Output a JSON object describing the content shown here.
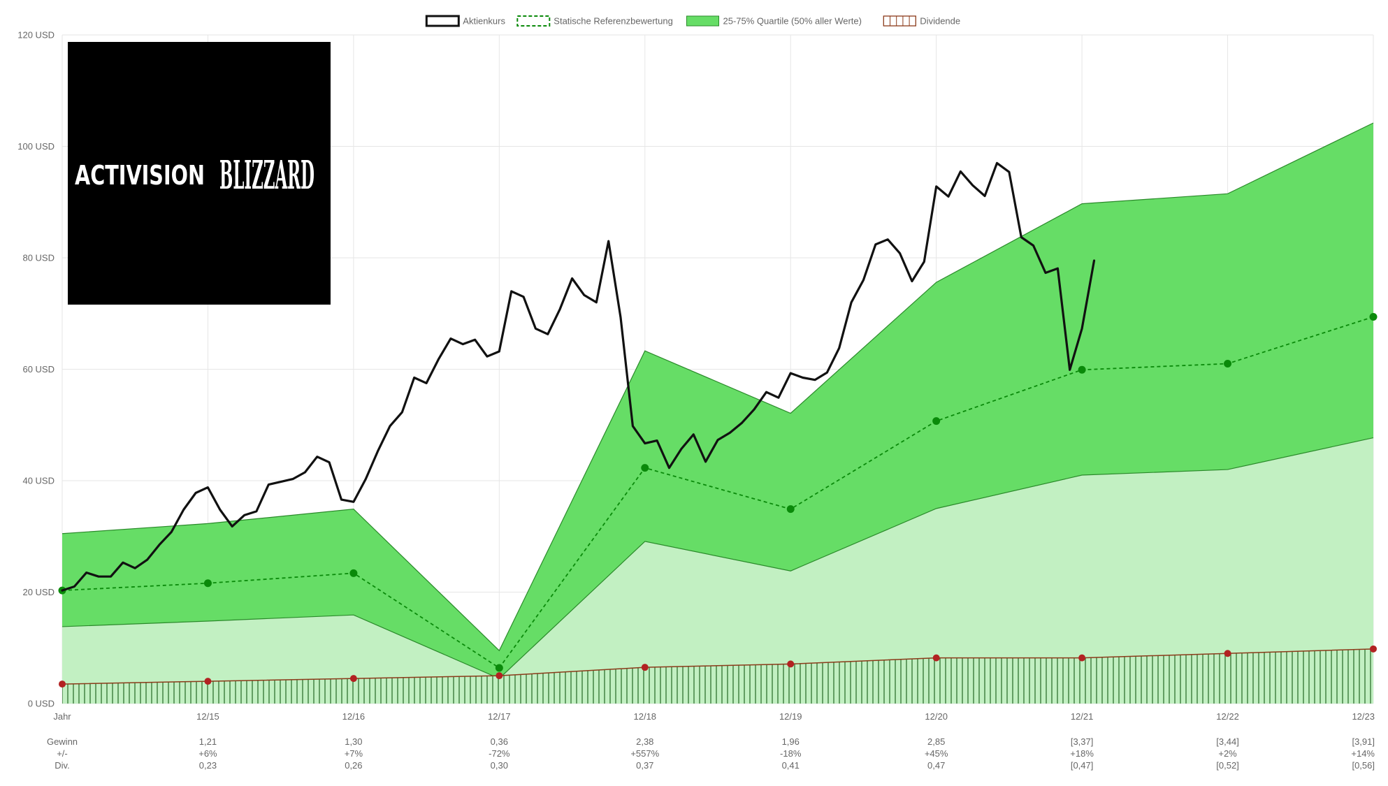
{
  "chart_data": {
    "type": "line",
    "y_axis": {
      "min": 0,
      "max": 120,
      "step": 20,
      "unit": "USD"
    },
    "x_axis": {
      "first_label": "Jahr",
      "categories": [
        "Jahr",
        "12/15",
        "12/16",
        "12/17",
        "12/18",
        "12/19",
        "12/20",
        "12/21",
        "12/22",
        "12/23"
      ]
    },
    "legend": {
      "placement": "top-center",
      "items": [
        {
          "label": "Aktienkurs",
          "style": "solid-black"
        },
        {
          "label": "Statische Referenzbewertung",
          "style": "dashed-green"
        },
        {
          "label": "25-75% Quartile (50% aller Werte)",
          "style": "green-fill"
        },
        {
          "label": "Dividende",
          "style": "hatched-red"
        }
      ]
    },
    "colors": {
      "price": "#111111",
      "reference": "#0a8a0a",
      "quartile_band": "#66dd66",
      "lower_band": "#c2f0c2",
      "dividend_line": "#8b3a1a",
      "dividend_dot": "#b22222",
      "dividend_hatch": "#3a7a3a",
      "grid": "#e6e6e6",
      "logo_background": "#000000",
      "logo_text": "#ffffff"
    },
    "series": [
      {
        "name": "Statische Referenzbewertung",
        "values": [
          20.3,
          21.6,
          23.4,
          6.4,
          42.3,
          34.9,
          50.7,
          59.9,
          61.0,
          69.4
        ]
      },
      {
        "name": "25-75% Quartile (50% aller Werte)",
        "upper": [
          30.5,
          32.3,
          34.9,
          9.5,
          63.3,
          52.1,
          75.6,
          89.7,
          91.5,
          104.2
        ],
        "lower": [
          13.8,
          14.8,
          15.9,
          4.5,
          29.1,
          23.8,
          35.0,
          41.0,
          42.0,
          47.7
        ]
      },
      {
        "name": "Dividende",
        "values": [
          3.5,
          4.0,
          4.5,
          5.0,
          6.5,
          7.1,
          8.2,
          8.2,
          9.0,
          9.8
        ]
      },
      {
        "name": "Aktienkurs",
        "x_start": 0,
        "x_step": 0.0833333,
        "values": [
          20.3,
          21.0,
          23.5,
          22.8,
          22.8,
          25.3,
          24.3,
          25.8,
          28.5,
          30.8,
          34.8,
          37.8,
          38.8,
          34.8,
          31.8,
          33.8,
          34.5,
          39.3,
          39.8,
          40.3,
          41.5,
          44.3,
          43.3,
          36.6,
          36.2,
          40.3,
          45.3,
          49.8,
          52.3,
          58.5,
          57.5,
          61.8,
          65.5,
          64.5,
          65.3,
          62.3,
          63.2,
          74.0,
          73.0,
          67.3,
          66.3,
          70.8,
          76.3,
          73.3,
          72.0,
          83.0,
          69.3,
          49.8,
          46.7,
          47.2,
          42.3,
          45.7,
          48.3,
          43.4,
          47.3,
          48.6,
          50.4,
          52.8,
          55.9,
          54.9,
          59.3,
          58.5,
          58.1,
          59.4,
          63.8,
          72.0,
          76.0,
          82.4,
          83.3,
          80.8,
          75.8,
          79.3,
          92.8,
          91.0,
          95.5,
          93.0,
          91.1,
          97.0,
          95.4,
          83.7,
          82.2,
          77.3,
          78.1,
          59.9,
          67.3,
          79.5
        ]
      }
    ],
    "table": {
      "row_labels": [
        "Gewinn",
        "+/-",
        "Div."
      ],
      "columns": [
        {
          "gewinn": "1,21",
          "change": "+6%",
          "div": "0,23"
        },
        {
          "gewinn": "1,30",
          "change": "+7%",
          "div": "0,26"
        },
        {
          "gewinn": "0,36",
          "change": "-72%",
          "div": "0,30"
        },
        {
          "gewinn": "2,38",
          "change": "+557%",
          "div": "0,37"
        },
        {
          "gewinn": "1,96",
          "change": "-18%",
          "div": "0,41"
        },
        {
          "gewinn": "2,85",
          "change": "+45%",
          "div": "0,47"
        },
        {
          "gewinn": "[3,37]",
          "change": "+18%",
          "div": "[0,47]"
        },
        {
          "gewinn": "[3,44]",
          "change": "+2%",
          "div": "[0,52]"
        },
        {
          "gewinn": "[3,91]",
          "change": "+14%",
          "div": "[0,56]"
        }
      ]
    },
    "logo": {
      "left_word": "ACTIVISION",
      "right_word": "BLIZZARD"
    }
  }
}
